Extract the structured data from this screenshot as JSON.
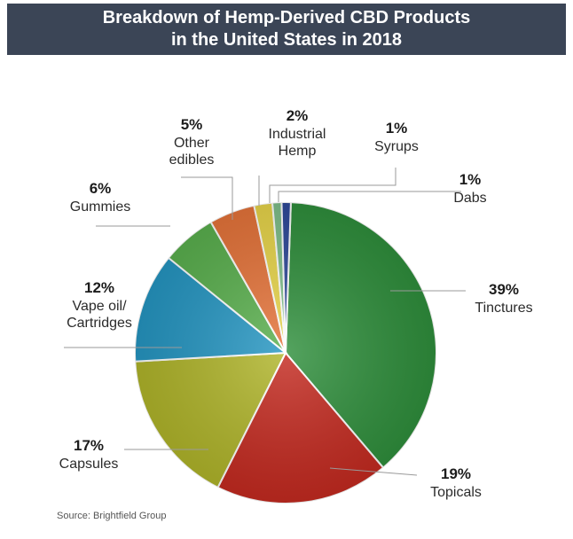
{
  "header": {
    "title_line1": "Breakdown of Hemp-Derived CBD Products",
    "title_line2": "in the United States in 2018"
  },
  "source": "Source: Brightfield Group",
  "chart_data": {
    "type": "pie",
    "title": "Breakdown of Hemp-Derived CBD Products in the United States in 2018",
    "unit": "%",
    "slices": [
      {
        "name": "Tinctures",
        "value": 39,
        "display": "39%",
        "color": "#2f8f3c",
        "label_lines": [
          "Tinctures"
        ]
      },
      {
        "name": "Topicals",
        "value": 19,
        "display": "19%",
        "color": "#c42a20",
        "label_lines": [
          "Topicals"
        ]
      },
      {
        "name": "Capsules",
        "value": 17,
        "display": "17%",
        "color": "#b0b52a",
        "label_lines": [
          "Capsules"
        ]
      },
      {
        "name": "Vape oil/ Cartridges",
        "value": 12,
        "display": "12%",
        "color": "#2596c2",
        "label_lines": [
          "Vape oil/",
          "Cartridges"
        ]
      },
      {
        "name": "Gummies",
        "value": 6,
        "display": "6%",
        "color": "#5ab04e",
        "label_lines": [
          "Gummies"
        ]
      },
      {
        "name": "Other edibles",
        "value": 5,
        "display": "5%",
        "color": "#e6743a",
        "label_lines": [
          "Other",
          "edibles"
        ]
      },
      {
        "name": "Industrial Hemp",
        "value": 2,
        "display": "2%",
        "color": "#e8d54a",
        "label_lines": [
          "Industrial",
          "Hemp"
        ]
      },
      {
        "name": "Syrups",
        "value": 1,
        "display": "1%",
        "color": "#7fbf8a",
        "label_lines": [
          "Syrups"
        ]
      },
      {
        "name": "Dabs",
        "value": 1,
        "display": "1%",
        "color": "#2f4a9a",
        "label_lines": [
          "Dabs"
        ]
      }
    ]
  }
}
